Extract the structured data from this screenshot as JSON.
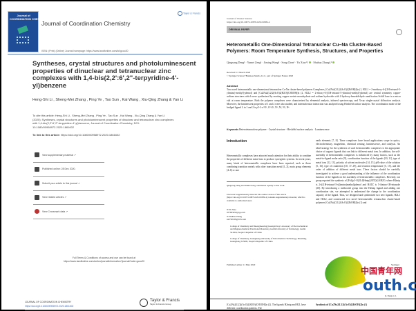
{
  "left_page": {
    "cover": {
      "title": "COORDINATION CHEMISTRY",
      "pre": "Journal of"
    },
    "journal_title": "Journal of Coordination Chemistry",
    "publisher_logo": "Taylor & Francis",
    "issn_line": "ISSN: (Print) (Online) Journal homepage: https://www.tandfonline.com/loi/gcoo20",
    "article_title": "Syntheses, crystal structures and photoluminescent properties of dinuclear and tetranuclear zinc complexes with 1,4-bis(2,2':6',2\"-terpyridine-4'-yl)benzene",
    "authors": "Heng-Shi Li , Sheng-Mei Zhang , Ping Ye , Tao Sun , Kai Wang , Xiu-Qing Zhang & Yan Li",
    "cite": "To cite this article: Heng-Shi Li , Sheng-Mei Zhang , Ping Ye , Tao Sun , Kai Wang , Xiu-Qing Zhang & Yan Li (2020): Syntheses, crystal structures and photoluminescent properties of dinuclear and tetranuclear zinc complexes with 1,4-bis(2,2':6',2\"-terpyridine-4'-yl)benzene, Journal of Coordination Chemistry, DOI: 10.1080/00958972.2020.1861602",
    "link_label": "To link to this article:",
    "link_url": "https://doi.org/10.1080/00958972.2020.1861602",
    "actions": [
      {
        "label": "View supplementary material ↗",
        "icon": "supplementary-icon"
      },
      {
        "label": "Published online: 28 Dec 2020.",
        "icon": "calendar-icon"
      },
      {
        "label": "Submit your article to this journal ↗",
        "icon": "edit-icon"
      },
      {
        "label": "View related articles ↗",
        "icon": "related-articles-icon"
      },
      {
        "label": "View Crossmark data ↗",
        "icon": "crossmark-icon"
      }
    ],
    "terms_line1": "Full Terms & Conditions of access and use can be found at",
    "terms_line2": "https://www.tandfonline.com/action/journalInformation?journalCode=gcoo20",
    "footer_journal": "JOURNAL OF COORDINATION CHEMISTRY",
    "footer_doi": "https://doi.org/10.1080/00958972.2020.1861602",
    "footer_logo": "Taylor & Francis",
    "footer_logo_sub": "Taylor & Francis Group"
  },
  "right_page": {
    "journal": "Journal of Cluster Science",
    "doi": "https://doi.org/10.1007/s10876-020-01809-4",
    "section": "ORIGINAL PAPER",
    "title_line1": "Heterometallic One-Dimensional Tetranuclear Cu–Na Cluster-Based",
    "title_line2": "Polymers: Room Temperature Synthesis, Structures, and Properties",
    "authors": "Qingsong Deng¹ · Yumei Zeng¹ · Jiming Wang² · Song Chen¹ · Yu Xiao¹,²",
    "authors_last": " · Shuhua Zhang¹,²",
    "received": "Received: 15 March 2020",
    "copyright": "© Springer Science+Business Media, LLC, part of Springer Nature 2020",
    "abstract_heading": "Abstract",
    "abstract": "Two novel heterometallic one-dimensional tetranuclear Cu-Na cluster-based polymers Complexes, [Cu2Na2(L1)2(AcO)2(EtOH)2]n (1, H2L1 = 2-methoxy-6-[(1H-tetrazol-5-ylimino)-methyl]-phenol) and [Cu2Na2(L2)2(AcO)2(H2O)(CH3OH)]n (2, H2L2 = 2-ethoxy-6-[(1H-tetrazol-5-ylimino)-methyl]-phenol) are central symmetry copper- sodium structures which were synthesized by reacting copper acetate monohydrate and sodium hydroxide with 2-hydroxy-benzaldehyde ramification Schiff base in a micro vial at room temperature. Both the polymer complexes were characterized by elemental analysis, infrared spectroscopy, and X-ray single-crystal diffraction analysis. Moreover, the luminescent properties of 1 and 2 were also studied, and intermolecular interaction was analyzed using Hirshfeld surface analysis. The coordination mode of the bridged ligand L in 1 and 2 is μ5-L-κ⁷O¹, O²:O², N¹, N², N³, N⁴.",
    "keywords_label": "Keywords",
    "keywords": " Heterotetranuclear polymer · Crystal structure · Hirshfeld surface analysis · Luminescence",
    "intro_heading": "Introduction",
    "intro_left": "Heterometallic complexes have attracted much attention for their ability to combine the properties of different metal ions to produce synergistic systems. In recent years, many kinds of heterometallic complexes have been reported, such as those combining transition metals with other transition metal [1–3], main group elements [4–6] or rare",
    "intro_right": "earth elements [7, 8]. These complexes have broad applications scope in optics, electrochemistry, magnetism, chemical sensing, luminescence, and catalysis. An ideal strategy for the syntheses of such heterometallic complexes is the appropriate choice of organic ligands that can link to different metal ions. In addition, the self-assembly of heterometallic complexes is influenced by many factors, such as the metal-to-ligand molar ratio [9], coordination function of the ligands [10, 11], type of metal ions [12, 13], polarity of solvent molecules [14, 15], pH value of the solution [5, 16], type of counterion [10, 17–19], and reaction temperature [5, 15], and the order of addition of different metal ions. These factors should be carefully investigated to achieve a good understanding of the influence of the coordination function of the ligands on the assembly of heterometallic complexes. Recently, our group reported the synthesis of [Fe2(μ3-O)2L4(Hmtp)(ATZ)4]·4H2O, where H2mtp is 2-(((1H-tetrazol-5-yl)imino)methyl)phenol and HATZ is 5-Amino-1H-tetrazole [20]. By introducing a methoxide group into the H2mtp ligand and adding one coordination site, we attempted to understand the change in the coordination capacity of the ligand. Thus, we designed and synthesized two new ligands, H2L1 and H2L2, and constructed two novel heterometallic tetranuclear cluster-based polymers [Cu2Na2(L1)2(AcO)2(EtOH)2]n (1) and",
    "footnote_equal": "Qingsong Deng and Yumei Zeng contributed equally to this work.",
    "footnote_esm": "Electronic supplementary material The online version of this article (https://doi.org/10.1007/s10876-020-01809-4) contains supplementary material, which is available to authorized users.",
    "contact1_name": "Yu Xiao",
    "contact1_email": "657683450@qq.com",
    "contact2_name": "Shuhua Zhang",
    "contact2_email": "zsh720108@163.com",
    "affil1": "College of Chemistry and Bioengineering (Guangxi Key Laboratory of Electrochemical and Magnetochemical Functional Materials), Guilin University of Technology, Guilin 541004, People's Republic of China",
    "affil2": "College of Chemistry, Guangdong University of Petrochemical Technology, Maoming, Guangdong 525000, People's Republic of China",
    "published": "Published online: 11 May 2020",
    "springer": "Springer",
    "running_head": "Q. Deng et al.",
    "bottom_left": "[Cu2Na2(L2)2(AcO)2(H2O)(CH3OH)]n (2). The ligands H2mtp and H2L have different coordination patterns. The",
    "bottom_right": "Synthesis of [Cu2Na2(L1)2(AcO)2(EtOH)2]n (1)"
  },
  "watermark": {
    "text_cn": "中国青年网",
    "text_en": "outh.cn"
  }
}
